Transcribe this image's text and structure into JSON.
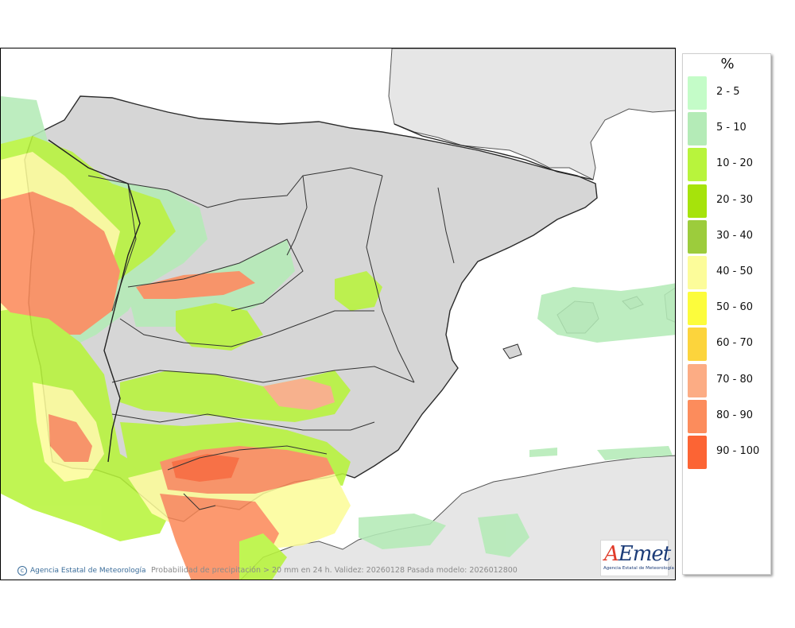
{
  "legend": {
    "title": "%",
    "items": [
      {
        "label": "2 - 5",
        "color": "#c4fcc8"
      },
      {
        "label": "5 - 10",
        "color": "#b4ebb7"
      },
      {
        "label": "10 - 20",
        "color": "#b8f43c"
      },
      {
        "label": "20 - 30",
        "color": "#a6e30b"
      },
      {
        "label": "30 - 40",
        "color": "#9ccc3c"
      },
      {
        "label": "40 - 50",
        "color": "#fcfc9a"
      },
      {
        "label": "50 - 60",
        "color": "#fcfc3c"
      },
      {
        "label": "60 - 70",
        "color": "#fcd43c"
      },
      {
        "label": "70 - 80",
        "color": "#fcac84"
      },
      {
        "label": "80 - 90",
        "color": "#fc8c5c"
      },
      {
        "label": "90 - 100",
        "color": "#fc6434"
      }
    ]
  },
  "credit": "Agencia Estatal de Meteorología",
  "caption": "Probabilidad de precipitación > 20 mm en 24 h. Validez: 20260128 Pasada modelo: 2026012800",
  "logo": {
    "word_a": "A",
    "word_rest": "Emet",
    "subtitle": "Agencia Estatal de Meteorología"
  },
  "colors": {
    "sea": "#ffffff",
    "foreign_land": "#e6e6e6",
    "iberia_land": "#d8d8d8",
    "borders": "#333333"
  }
}
